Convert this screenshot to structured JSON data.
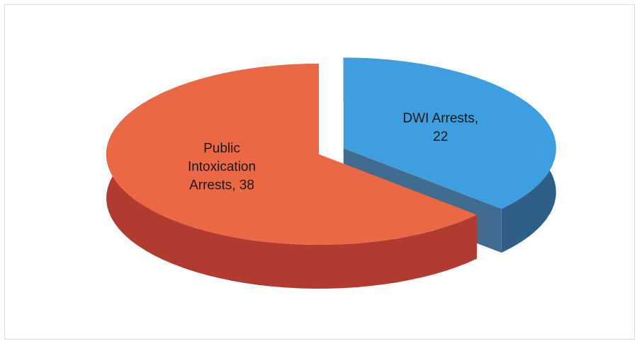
{
  "chart_data": {
    "type": "pie",
    "slices": [
      {
        "name": "DWI Arrests",
        "value": 22,
        "label_lines": [
          "DWI Arrests,",
          "22"
        ],
        "top_color": "#3d9fe0",
        "side_color": "#2f5f86"
      },
      {
        "name": "Public Intoxication Arrests",
        "value": 38,
        "label_lines": [
          "Public",
          "Intoxication",
          "Arrests, 38"
        ],
        "top_color": "#ec6844",
        "side_color": "#b23b30"
      }
    ]
  }
}
